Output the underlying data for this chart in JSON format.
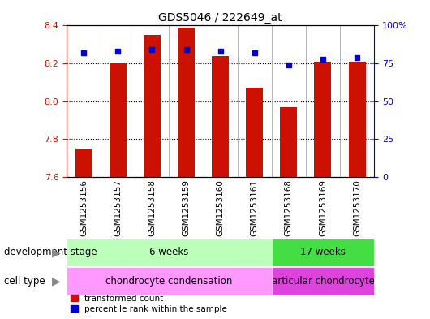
{
  "title": "GDS5046 / 222649_at",
  "samples": [
    "GSM1253156",
    "GSM1253157",
    "GSM1253158",
    "GSM1253159",
    "GSM1253160",
    "GSM1253161",
    "GSM1253168",
    "GSM1253169",
    "GSM1253170"
  ],
  "transformed_count": [
    7.75,
    8.2,
    8.35,
    8.39,
    8.24,
    8.07,
    7.97,
    8.21,
    8.21
  ],
  "percentile_rank": [
    82,
    83,
    84,
    84,
    83,
    82,
    74,
    78,
    79
  ],
  "ylim_left": [
    7.6,
    8.4
  ],
  "ylim_right": [
    0,
    100
  ],
  "yticks_left": [
    7.6,
    7.8,
    8.0,
    8.2,
    8.4
  ],
  "yticks_right": [
    0,
    25,
    50,
    75,
    100
  ],
  "ytick_labels_right": [
    "0",
    "25",
    "50",
    "75",
    "100%"
  ],
  "bar_color": "#cc1100",
  "dot_color": "#0000cc",
  "plot_bg_color": "#ffffff",
  "xlabel_bg_color": "#cccccc",
  "dev_stage_groups": [
    {
      "label": "6 weeks",
      "start": 0,
      "end": 5,
      "color": "#bbffbb"
    },
    {
      "label": "17 weeks",
      "start": 6,
      "end": 8,
      "color": "#44dd44"
    }
  ],
  "cell_type_groups": [
    {
      "label": "chondrocyte condensation",
      "start": 0,
      "end": 5,
      "color": "#ff99ff"
    },
    {
      "label": "articular chondrocyte",
      "start": 6,
      "end": 8,
      "color": "#dd44dd"
    }
  ],
  "legend_items": [
    {
      "label": "transformed count",
      "color": "#cc1100"
    },
    {
      "label": "percentile rank within the sample",
      "color": "#0000cc"
    }
  ],
  "left_tick_color": "#cc1100",
  "right_tick_color": "#0000cc",
  "dev_stage_label": "development stage",
  "cell_type_label": "cell type",
  "separator_color": "#999999",
  "grid_color": "#000000"
}
